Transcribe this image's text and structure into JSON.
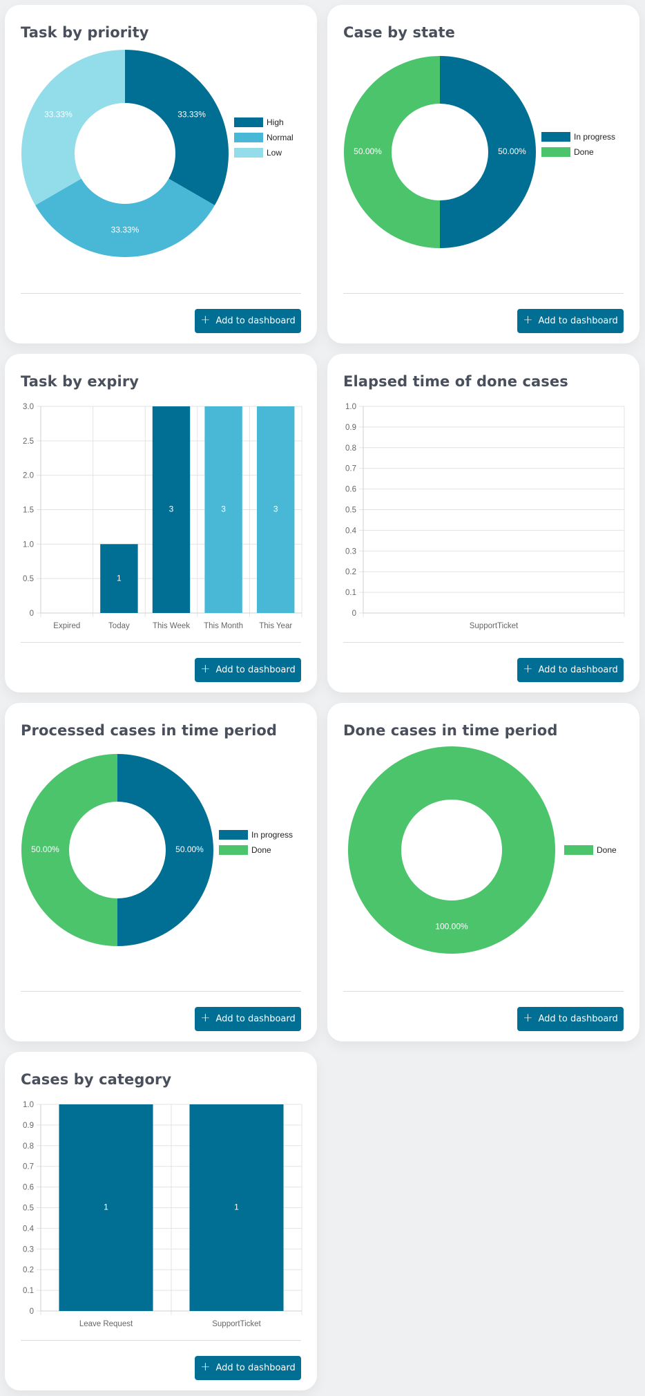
{
  "button_label": "Add to dashboard",
  "colors": {
    "dark_blue": "#016e94",
    "mid_blue": "#48b8d6",
    "light_blue": "#93dce9",
    "green": "#4bc46c"
  },
  "cards": [
    {
      "id": "task-priority",
      "title": "Task by priority"
    },
    {
      "id": "case-state",
      "title": "Case by state"
    },
    {
      "id": "task-expiry",
      "title": "Task by expiry"
    },
    {
      "id": "elapsed-time",
      "title": "Elapsed time of done cases"
    },
    {
      "id": "processed-cases",
      "title": "Processed cases in time period"
    },
    {
      "id": "done-cases",
      "title": "Done cases in time period"
    },
    {
      "id": "cases-category",
      "title": "Cases by category"
    }
  ],
  "chart_data": [
    {
      "type": "pie",
      "title": "Task by priority",
      "categories": [
        "High",
        "Normal",
        "Low"
      ],
      "values": [
        33.33,
        33.33,
        33.33
      ],
      "labels": [
        "33.33%",
        "33.33%",
        "33.33%"
      ],
      "colors": [
        "#016e94",
        "#48b8d6",
        "#93dce9"
      ],
      "legend": "right"
    },
    {
      "type": "pie",
      "title": "Case by state",
      "categories": [
        "In progress",
        "Done"
      ],
      "values": [
        50,
        50
      ],
      "labels": [
        "50.00%",
        "50.00%"
      ],
      "colors": [
        "#016e94",
        "#4bc46c"
      ],
      "legend": "right"
    },
    {
      "type": "bar",
      "title": "Task by expiry",
      "categories": [
        "Expired",
        "Today",
        "This Week",
        "This Month",
        "This Year"
      ],
      "values": [
        0,
        1,
        3,
        3,
        3
      ],
      "bar_labels": [
        "",
        "1",
        "3",
        "3",
        "3"
      ],
      "colors": [
        "#016e94",
        "#016e94",
        "#016e94",
        "#48b8d6",
        "#48b8d6"
      ],
      "y_ticks": [
        "0",
        "0.5",
        "1.0",
        "1.5",
        "2.0",
        "2.5",
        "3.0"
      ],
      "ylim": [
        0,
        3
      ],
      "grid": true
    },
    {
      "type": "bar",
      "title": "Elapsed time of done cases",
      "categories": [
        "SupportTicket"
      ],
      "values": [
        0
      ],
      "bar_labels": [
        ""
      ],
      "colors": [
        "#016e94"
      ],
      "y_ticks": [
        "0",
        "0.1",
        "0.2",
        "0.3",
        "0.4",
        "0.5",
        "0.6",
        "0.7",
        "0.8",
        "0.9",
        "1.0"
      ],
      "ylim": [
        0,
        1
      ],
      "grid": true
    },
    {
      "type": "pie",
      "title": "Processed cases in time period",
      "categories": [
        "In progress",
        "Done"
      ],
      "values": [
        50,
        50
      ],
      "labels": [
        "50.00%",
        "50.00%"
      ],
      "colors": [
        "#016e94",
        "#4bc46c"
      ],
      "legend": "right"
    },
    {
      "type": "pie",
      "title": "Done cases in time period",
      "categories": [
        "Done"
      ],
      "values": [
        100
      ],
      "labels": [
        "100.00%"
      ],
      "colors": [
        "#4bc46c"
      ],
      "legend": "right"
    },
    {
      "type": "bar",
      "title": "Cases by category",
      "categories": [
        "Leave Request",
        "SupportTicket"
      ],
      "values": [
        1,
        1
      ],
      "bar_labels": [
        "1",
        "1"
      ],
      "colors": [
        "#016e94",
        "#016e94"
      ],
      "y_ticks": [
        "0",
        "0.1",
        "0.2",
        "0.3",
        "0.4",
        "0.5",
        "0.6",
        "0.7",
        "0.8",
        "0.9",
        "1.0"
      ],
      "ylim": [
        0,
        1
      ],
      "grid": true
    }
  ]
}
